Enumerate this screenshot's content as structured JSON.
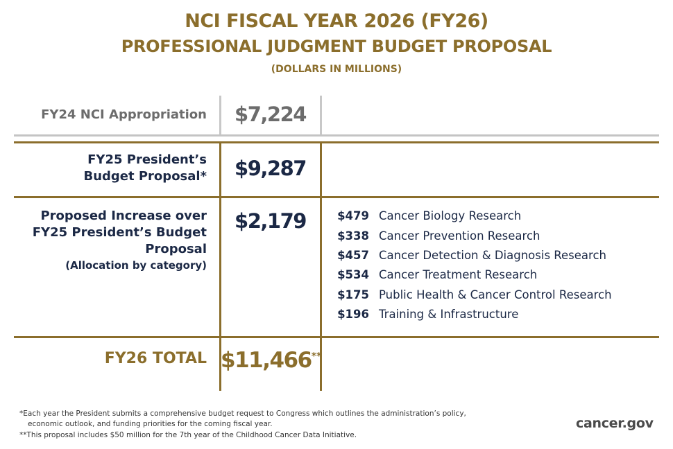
{
  "header": {
    "title_line1": "NCI FISCAL YEAR 2026 (FY26)",
    "title_line2": "PROFESSIONAL JUDGMENT BUDGET PROPOSAL",
    "units": "(DOLLARS IN MILLIONS)"
  },
  "rows": {
    "fy24": {
      "label": "FY24 NCI Appropriation",
      "amount": "$7,224"
    },
    "fy25": {
      "label_line1": "FY25 President’s",
      "label_line2": "Budget Proposal*",
      "amount": "$9,287"
    },
    "increase": {
      "label_line1": "Proposed Increase over",
      "label_line2": "FY25 President’s Budget",
      "label_line3": "Proposal",
      "sublabel": "(Allocation by category)",
      "amount": "$2,179"
    },
    "total": {
      "label": "FY26 TOTAL",
      "amount": "$11,466",
      "marker": "**"
    }
  },
  "categories": [
    {
      "amount": "$479",
      "name": "Cancer Biology Research"
    },
    {
      "amount": "$338",
      "name": "Cancer Prevention Research"
    },
    {
      "amount": "$457",
      "name": "Cancer Detection & Diagnosis Research"
    },
    {
      "amount": "$534",
      "name": "Cancer Treatment Research"
    },
    {
      "amount": "$175",
      "name": "Public Health & Cancer Control Research"
    },
    {
      "amount": "$196",
      "name": "Training & Infrastructure"
    }
  ],
  "footnotes": {
    "note1_line1": "*Each year the President submits a comprehensive budget request to Congress which outlines the administration’s policy,",
    "note1_line2": "economic outlook, and funding priorities for the coming fiscal year.",
    "note2": "**This proposal includes $50 million for the 7th year of the Childhood Cancer Data Initiative."
  },
  "site": "cancer.gov",
  "colors": {
    "gold": "#8b6e2c",
    "navy": "#1b2845",
    "grey": "#6c6c6c",
    "grey_line": "#c4c4c4"
  }
}
